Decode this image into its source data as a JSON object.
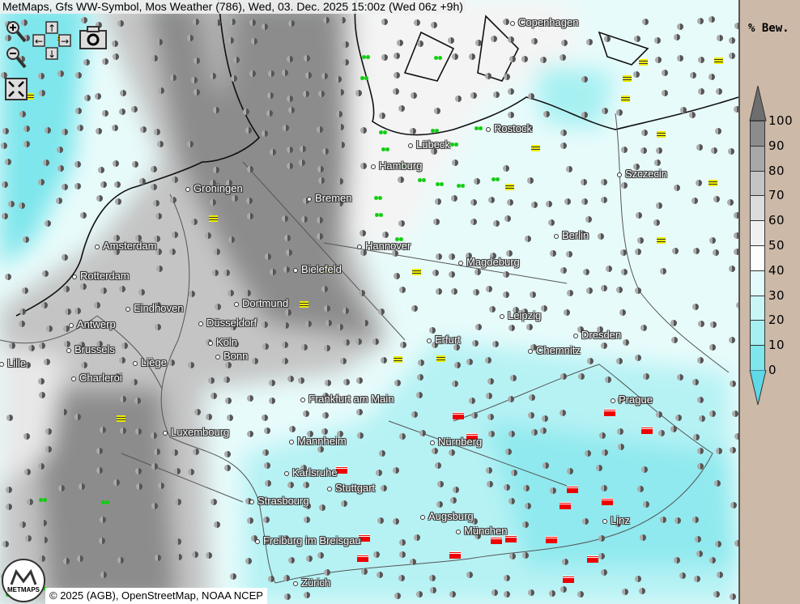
{
  "title": "MetMaps, Gfs WW-Symbol, Mos Weather (786), Wed, 03. Dec. 2025 15:00z (Wed 06z +9h)",
  "controls": {
    "zoom_in": "zoom-in-icon",
    "zoom_out": "zoom-out-icon",
    "pan": "pan-arrows-icon",
    "screenshot": "camera-icon",
    "fullscreen": "fullscreen-icon"
  },
  "cities": [
    "Copenhagen",
    "Rostock",
    "Lübeck",
    "Hamburg",
    "Szczecin",
    "Groningen",
    "Bremen",
    "Berlin",
    "Amsterdam",
    "Hannover",
    "Magdeburg",
    "Bielefeld",
    "Rotterdam",
    "Eindhoven",
    "Dortmund",
    "Leipzig",
    "Antwerp",
    "Düsseldorf",
    "Dresden",
    "Erfurt",
    "Köln",
    "Brussels",
    "Chemnitz",
    "Bonn",
    "Liège",
    "Lille",
    "Charleroi",
    "Frankfurt am Main",
    "Prague",
    "Luxembourg",
    "Mannheim",
    "Nürnberg",
    "Karlsruhe",
    "Stuttgart",
    "Strasbourg",
    "Augsburg",
    "Linz",
    "München",
    "Freiburg im Breisgau",
    "Zürich"
  ],
  "footer": "© 2025 (AGB), OpenStreetMap, NOAA NCEP",
  "logo": "METMAPS",
  "legend": {
    "title": "% Bew.",
    "labels": [
      "100",
      "90",
      "80",
      "70",
      "60",
      "50",
      "40",
      "30",
      "20",
      "10",
      "0"
    ],
    "colors": [
      "#6e6e6e",
      "#8c8c8c",
      "#a8a8a8",
      "#c4c4c4",
      "#dcdcdc",
      "#f0f0f0",
      "#fdfdfd",
      "#e2fafa",
      "#c8f6f6",
      "#a6f0f2",
      "#7ee6ec",
      "#5fd8e8"
    ]
  }
}
